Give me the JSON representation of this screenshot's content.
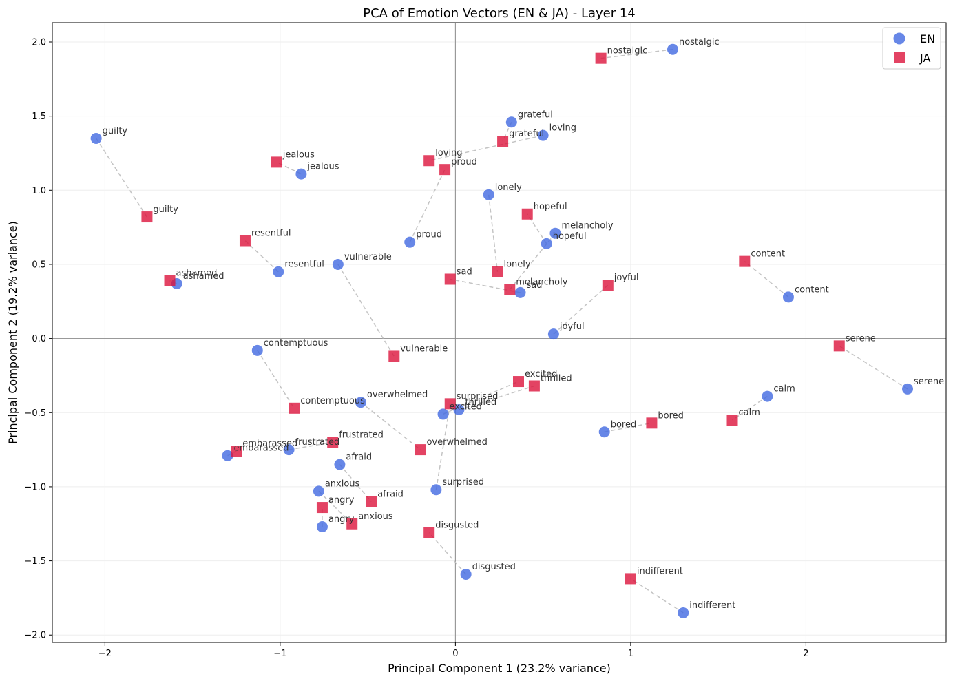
{
  "chart_data": {
    "type": "scatter",
    "title": "PCA of Emotion Vectors (EN & JA) - Layer 14",
    "xlabel": "Principal Component 1 (23.2% variance)",
    "ylabel": "Principal Component 2 (19.2% variance)",
    "xlim": [
      -2.3,
      2.8
    ],
    "ylim": [
      -2.05,
      2.13
    ],
    "xticks": [
      -2,
      -1,
      0,
      1,
      2
    ],
    "yticks": [
      -2.0,
      -1.5,
      -1.0,
      -0.5,
      0.0,
      0.5,
      1.0,
      1.5,
      2.0
    ],
    "xtick_labels": [
      "−2",
      "−1",
      "0",
      "1",
      "2"
    ],
    "ytick_labels": [
      "−2.0",
      "−1.5",
      "−1.0",
      "−0.5",
      "0.0",
      "0.5",
      "1.0",
      "1.5",
      "2.0"
    ],
    "grid": true,
    "zero_lines": true,
    "legend_position": "top-right",
    "series": [
      {
        "name": "EN",
        "marker": "circle",
        "color": "#4169e1",
        "points": [
          {
            "label": "guilty",
            "x": -2.05,
            "y": 1.35
          },
          {
            "label": "jealous",
            "x": -0.88,
            "y": 1.11
          },
          {
            "label": "resentful",
            "x": -1.01,
            "y": 0.45
          },
          {
            "label": "ashamed",
            "x": -1.59,
            "y": 0.37
          },
          {
            "label": "vulnerable",
            "x": -0.67,
            "y": 0.5
          },
          {
            "label": "proud",
            "x": -0.26,
            "y": 0.65
          },
          {
            "label": "grateful",
            "x": 0.32,
            "y": 1.46
          },
          {
            "label": "loving",
            "x": 0.5,
            "y": 1.37
          },
          {
            "label": "lonely",
            "x": 0.19,
            "y": 0.97
          },
          {
            "label": "melancholy",
            "x": 0.57,
            "y": 0.71
          },
          {
            "label": "hopeful",
            "x": 0.52,
            "y": 0.64
          },
          {
            "label": "sad",
            "x": 0.37,
            "y": 0.31
          },
          {
            "label": "joyful",
            "x": 0.56,
            "y": 0.03
          },
          {
            "label": "nostalgic",
            "x": 1.24,
            "y": 1.95
          },
          {
            "label": "content",
            "x": 1.9,
            "y": 0.28
          },
          {
            "label": "serene",
            "x": 2.58,
            "y": -0.34
          },
          {
            "label": "calm",
            "x": 1.78,
            "y": -0.39
          },
          {
            "label": "bored",
            "x": 0.85,
            "y": -0.63
          },
          {
            "label": "contemptuous",
            "x": -1.13,
            "y": -0.08
          },
          {
            "label": "overwhelmed",
            "x": -0.54,
            "y": -0.43
          },
          {
            "label": "thrilled",
            "x": 0.02,
            "y": -0.48
          },
          {
            "label": "excited",
            "x": -0.07,
            "y": -0.51
          },
          {
            "label": "embarassed",
            "x": -1.3,
            "y": -0.79
          },
          {
            "label": "frustrated",
            "x": -0.95,
            "y": -0.75
          },
          {
            "label": "afraid",
            "x": -0.66,
            "y": -0.85
          },
          {
            "label": "anxious",
            "x": -0.78,
            "y": -1.03
          },
          {
            "label": "angry",
            "x": -0.76,
            "y": -1.27
          },
          {
            "label": "surprised",
            "x": -0.11,
            "y": -1.02
          },
          {
            "label": "disgusted",
            "x": 0.06,
            "y": -1.59
          },
          {
            "label": "indifferent",
            "x": 1.3,
            "y": -1.85
          }
        ]
      },
      {
        "name": "JA",
        "marker": "square",
        "color": "#dc143c",
        "points": [
          {
            "label": "guilty",
            "x": -1.76,
            "y": 0.82
          },
          {
            "label": "jealous",
            "x": -1.02,
            "y": 1.19
          },
          {
            "label": "resentful",
            "x": -1.2,
            "y": 0.66
          },
          {
            "label": "ashamed",
            "x": -1.63,
            "y": 0.39
          },
          {
            "label": "vulnerable",
            "x": -0.35,
            "y": -0.12
          },
          {
            "label": "proud",
            "x": -0.06,
            "y": 1.14
          },
          {
            "label": "grateful",
            "x": 0.27,
            "y": 1.33
          },
          {
            "label": "loving",
            "x": -0.15,
            "y": 1.2
          },
          {
            "label": "lonely",
            "x": 0.24,
            "y": 0.45
          },
          {
            "label": "melancholy",
            "x": 0.31,
            "y": 0.33
          },
          {
            "label": "hopeful",
            "x": 0.41,
            "y": 0.84
          },
          {
            "label": "sad",
            "x": -0.03,
            "y": 0.4
          },
          {
            "label": "joyful",
            "x": 0.87,
            "y": 0.36
          },
          {
            "label": "nostalgic",
            "x": 0.83,
            "y": 1.89
          },
          {
            "label": "content",
            "x": 1.65,
            "y": 0.52
          },
          {
            "label": "serene",
            "x": 2.19,
            "y": -0.05
          },
          {
            "label": "calm",
            "x": 1.58,
            "y": -0.55
          },
          {
            "label": "bored",
            "x": 1.12,
            "y": -0.57
          },
          {
            "label": "contemptuous",
            "x": -0.92,
            "y": -0.47
          },
          {
            "label": "overwhelmed",
            "x": -0.2,
            "y": -0.75
          },
          {
            "label": "thrilled",
            "x": 0.45,
            "y": -0.32
          },
          {
            "label": "excited",
            "x": 0.36,
            "y": -0.29
          },
          {
            "label": "surprised",
            "x": -0.03,
            "y": -0.44
          },
          {
            "label": "embarassed",
            "x": -1.25,
            "y": -0.76
          },
          {
            "label": "frustrated",
            "x": -0.7,
            "y": -0.7
          },
          {
            "label": "afraid",
            "x": -0.48,
            "y": -1.1
          },
          {
            "label": "angry",
            "x": -0.76,
            "y": -1.14
          },
          {
            "label": "anxious",
            "x": -0.59,
            "y": -1.25
          },
          {
            "label": "disgusted",
            "x": -0.15,
            "y": -1.31
          },
          {
            "label": "indifferent",
            "x": 1.0,
            "y": -1.62
          }
        ]
      }
    ]
  }
}
